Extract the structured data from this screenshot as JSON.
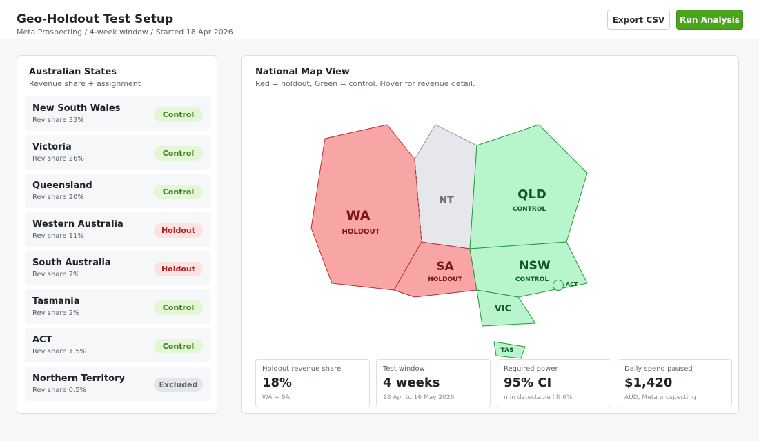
{
  "header": {
    "title": "Geo-Holdout Test Setup",
    "breadcrumb": "Meta Prospecting / 4-week window / Started 18 Apr 2026",
    "export_label": "Export CSV",
    "run_label": "Run Analysis"
  },
  "states_panel": {
    "title": "Australian States",
    "subtitle": "Revenue share + assignment",
    "items": [
      {
        "name": "New South Wales",
        "share": "Rev share 33%",
        "status": "Control",
        "status_key": "control"
      },
      {
        "name": "Victoria",
        "share": "Rev share 26%",
        "status": "Control",
        "status_key": "control"
      },
      {
        "name": "Queensland",
        "share": "Rev share 20%",
        "status": "Control",
        "status_key": "control"
      },
      {
        "name": "Western Australia",
        "share": "Rev share 11%",
        "status": "Holdout",
        "status_key": "holdout"
      },
      {
        "name": "South Australia",
        "share": "Rev share 7%",
        "status": "Holdout",
        "status_key": "holdout"
      },
      {
        "name": "Tasmania",
        "share": "Rev share 2%",
        "status": "Control",
        "status_key": "control"
      },
      {
        "name": "ACT",
        "share": "Rev share 1.5%",
        "status": "Control",
        "status_key": "control"
      },
      {
        "name": "Northern Territory",
        "share": "Rev share 0.5%",
        "status": "Excluded",
        "status_key": "excluded"
      }
    ]
  },
  "map_panel": {
    "title": "National Map View",
    "subtitle": "Red = holdout, Green = control. Hover for revenue detail.",
    "regions": {
      "wa": {
        "code": "WA",
        "status": "HOLDOUT"
      },
      "nt": {
        "code": "NT"
      },
      "qld": {
        "code": "QLD",
        "status": "CONTROL"
      },
      "sa": {
        "code": "SA",
        "status": "HOLDOUT"
      },
      "nsw": {
        "code": "NSW",
        "status": "CONTROL"
      },
      "act": {
        "code": "ACT"
      },
      "vic": {
        "code": "VIC"
      },
      "tas": {
        "code": "TAS"
      }
    }
  },
  "stats": [
    {
      "label": "Holdout revenue share",
      "value": "18%",
      "note": "WA + SA"
    },
    {
      "label": "Test window",
      "value": "4 weeks",
      "note": "18 Apr to 16 May 2026"
    },
    {
      "label": "Required power",
      "value": "95% CI",
      "note": "min detectable lift 6%"
    },
    {
      "label": "Daily spend paused",
      "value": "$1,420",
      "note": "AUD, Meta prospecting"
    }
  ],
  "colors": {
    "holdout_fill": "#f8a5a5",
    "holdout_stroke": "#c0282d",
    "control_fill": "#b8f5cc",
    "control_stroke": "#1f9a3a",
    "excluded_fill": "#e6e7eb",
    "excluded_stroke": "#8a8fa6",
    "run_button": "#4ba51c"
  }
}
